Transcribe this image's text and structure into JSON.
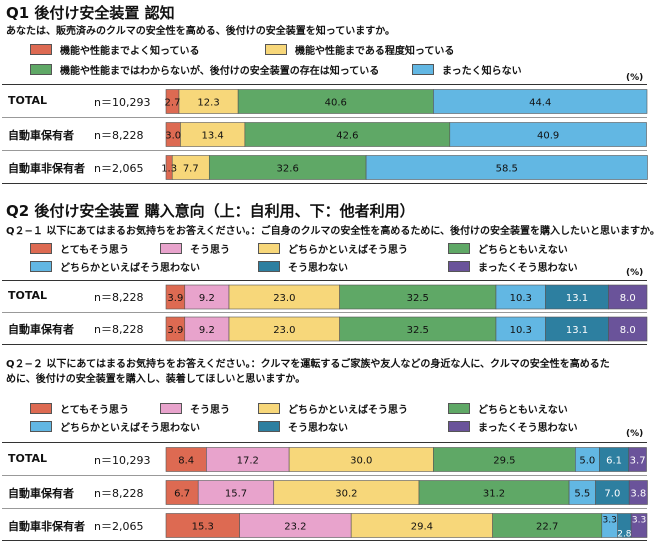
{
  "q1": {
    "title": "Q1 後付け安全装置 認知",
    "subtitle": "あなたは、販売済みのクルマの安全性を高める、後付けの安全装置を知っていますか。",
    "pct_label": "(%)"
  },
  "q2": {
    "title": "Q2 後付け安全装置 購入意向（上：自利用、下：他者利用）",
    "subtitle": "Q２−１ 以下にあてはまるお気持ちをお答えください。：ご自身のクルマの安全性を高めるために、後付けの安全装置を購入したいと思いますか。",
    "pct_label": "(%)"
  },
  "q22": {
    "subtitle_line1": "Q２−２ 以下にあてはまるお気持ちをお答えください。：クルマを運転するご家族や友人などの身近な人に、クルマの安全性を高めるた",
    "subtitle_line2": "めに、後付けの安全装置を購入し、装着してほしいと思いますか。",
    "pct_label": "(%)"
  },
  "colors": {
    "red": "#dd6a52",
    "yellow": "#f7d77a",
    "green": "#5fa866",
    "sky": "#62b7e3",
    "pink": "#e8a3cc",
    "teal": "#2d7fa0",
    "purple": "#6a539a"
  },
  "chart_data": [
    {
      "type": "bar",
      "orientation": "horizontal-stacked",
      "categories": [
        "TOTAL",
        "自動車保有者",
        "自動車非保有者"
      ],
      "n_labels": [
        "n＝10,293",
        "n＝8,228",
        "n＝2,065"
      ],
      "series": [
        {
          "name": "機能や性能までよく知っている",
          "color": "#dd6a52",
          "values": [
            2.7,
            3.0,
            1.3
          ]
        },
        {
          "name": "機能や性能まである程度知っている",
          "color": "#f7d77a",
          "values": [
            12.3,
            13.4,
            7.7
          ]
        },
        {
          "name": "機能や性能まではわからないが、後付けの安全装置の存在は知っている",
          "color": "#5fa866",
          "values": [
            40.6,
            42.6,
            32.6
          ]
        },
        {
          "name": "まったく知らない",
          "color": "#62b7e3",
          "values": [
            44.4,
            40.9,
            58.5
          ]
        }
      ],
      "value_labels": [
        [
          "2.7",
          "12.3",
          "40.6",
          "44.4"
        ],
        [
          "3.0",
          "13.4",
          "42.6",
          "40.9"
        ],
        [
          "1.3",
          "7.7",
          "32.6",
          "58.5"
        ]
      ],
      "xlim": [
        0,
        100
      ]
    },
    {
      "type": "bar",
      "orientation": "horizontal-stacked",
      "categories": [
        "TOTAL",
        "自動車保有者"
      ],
      "n_labels": [
        "n＝8,228",
        "n＝8,228"
      ],
      "series": [
        {
          "name": "とてもそう思う",
          "color": "#dd6a52",
          "values": [
            3.9,
            3.9
          ]
        },
        {
          "name": "そう思う",
          "color": "#e8a3cc",
          "values": [
            9.2,
            9.2
          ]
        },
        {
          "name": "どちらかといえばそう思う",
          "color": "#f7d77a",
          "values": [
            23.0,
            23.0
          ]
        },
        {
          "name": "どちらともいえない",
          "color": "#5fa866",
          "values": [
            32.5,
            32.5
          ]
        },
        {
          "name": "どちらかといえばそう思わない",
          "color": "#62b7e3",
          "values": [
            10.3,
            10.3
          ]
        },
        {
          "name": "そう思わない",
          "color": "#2d7fa0",
          "values": [
            13.1,
            13.1
          ]
        },
        {
          "name": "まったくそう思わない",
          "color": "#6a539a",
          "values": [
            8.0,
            8.0
          ]
        }
      ],
      "value_labels": [
        [
          "3.9",
          "9.2",
          "23.0",
          "32.5",
          "10.3",
          "13.1",
          "8.0"
        ],
        [
          "3.9",
          "9.2",
          "23.0",
          "32.5",
          "10.3",
          "13.1",
          "8.0"
        ]
      ],
      "xlim": [
        0,
        100
      ]
    },
    {
      "type": "bar",
      "orientation": "horizontal-stacked",
      "categories": [
        "TOTAL",
        "自動車保有者",
        "自動車非保有者"
      ],
      "n_labels": [
        "n＝10,293",
        "n＝8,228",
        "n＝2,065"
      ],
      "series": [
        {
          "name": "とてもそう思う",
          "color": "#dd6a52",
          "values": [
            8.4,
            6.7,
            15.3
          ]
        },
        {
          "name": "そう思う",
          "color": "#e8a3cc",
          "values": [
            17.2,
            15.7,
            23.2
          ]
        },
        {
          "name": "どちらかといえばそう思う",
          "color": "#f7d77a",
          "values": [
            30.0,
            30.2,
            29.4
          ]
        },
        {
          "name": "どちらともいえない",
          "color": "#5fa866",
          "values": [
            29.5,
            31.2,
            22.7
          ]
        },
        {
          "name": "どちらかといえばそう思わない",
          "color": "#62b7e3",
          "values": [
            5.0,
            5.5,
            3.3
          ]
        },
        {
          "name": "そう思わない",
          "color": "#2d7fa0",
          "values": [
            6.1,
            7.0,
            2.8
          ]
        },
        {
          "name": "まったくそう思わない",
          "color": "#6a539a",
          "values": [
            3.7,
            3.8,
            3.3
          ]
        }
      ],
      "value_labels": [
        [
          "8.4",
          "17.2",
          "30.0",
          "29.5",
          "5.0",
          "6.1",
          "3.7"
        ],
        [
          "6.7",
          "15.7",
          "30.2",
          "31.2",
          "5.5",
          "7.0",
          "3.8"
        ],
        [
          "15.3",
          "23.2",
          "29.4",
          "22.7",
          "3.3",
          "2.8",
          "3.3"
        ]
      ],
      "xlim": [
        0,
        100
      ]
    }
  ]
}
